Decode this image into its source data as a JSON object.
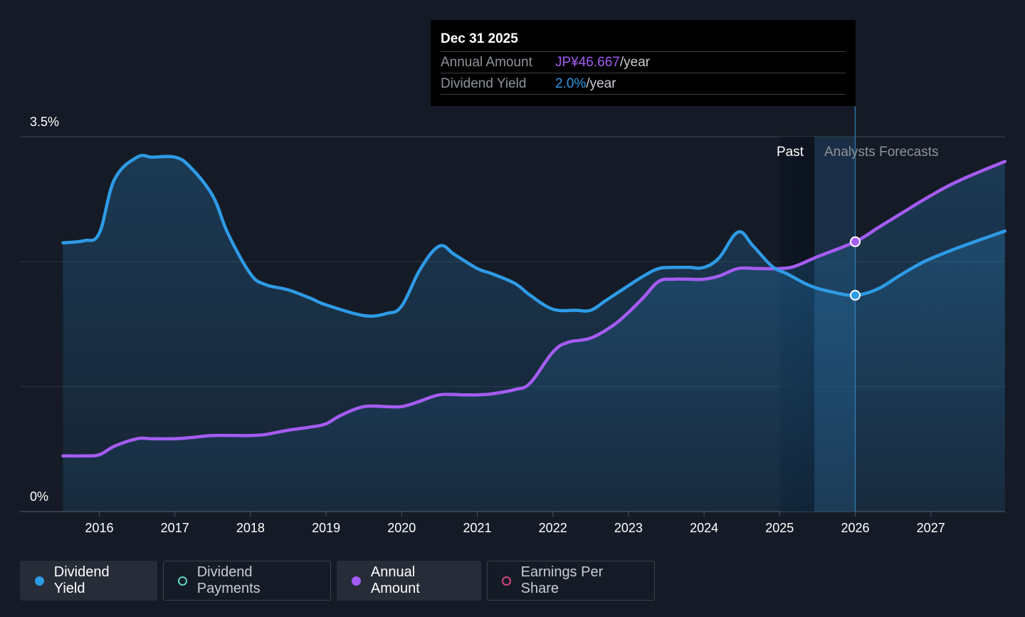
{
  "tooltip": {
    "date": "Dec 31 2025",
    "rows": [
      {
        "label": "Annual Amount",
        "value": "JP¥46.667",
        "unit": "/year"
      },
      {
        "label": "Dividend Yield",
        "value": "2.0%",
        "unit": "/year"
      }
    ]
  },
  "legend": {
    "items": [
      {
        "label": "Dividend Yield",
        "color": "#2e9be6",
        "style": "filled",
        "active": true
      },
      {
        "label": "Dividend Payments",
        "color": "#5fd3c0",
        "style": "ring",
        "active": false
      },
      {
        "label": "Annual Amount",
        "color": "#a55cf2",
        "style": "filled",
        "active": true
      },
      {
        "label": "Earnings Per Share",
        "color": "#d1437e",
        "style": "ring",
        "active": false
      }
    ]
  },
  "chart_data": {
    "type": "line",
    "y_tick_labels": [
      "3.5%",
      "0%"
    ],
    "ylim": [
      0,
      3.5
    ],
    "xlim": [
      2015.0,
      2027.98
    ],
    "x_tick_labels": [
      "2016",
      "2017",
      "2018",
      "2019",
      "2020",
      "2021",
      "2022",
      "2023",
      "2024",
      "2025",
      "2026",
      "2027"
    ],
    "region_labels": {
      "past": "Past",
      "forecast": "Analysts Forecasts"
    },
    "past_end": 2025.0,
    "forecast_start": 2025.46,
    "highlight_x": 2026.0,
    "grid": true,
    "colors": {
      "yield": "#2e9be6",
      "amount": "#a55cf2"
    },
    "series": [
      {
        "name": "Dividend Yield",
        "x": [
          2015.52,
          2015.8,
          2016.0,
          2016.2,
          2016.5,
          2016.7,
          2017.0,
          2017.2,
          2017.5,
          2017.7,
          2018.0,
          2018.2,
          2018.5,
          2018.8,
          2019.0,
          2019.5,
          2019.8,
          2020.0,
          2020.25,
          2020.5,
          2020.7,
          2021.0,
          2021.2,
          2021.5,
          2021.7,
          2022.0,
          2022.3,
          2022.5,
          2022.7,
          2023.0,
          2023.2,
          2023.4,
          2023.6,
          2023.8,
          2024.0,
          2024.2,
          2024.45,
          2024.65,
          2024.9,
          2025.1,
          2025.4,
          2025.7,
          2026.0,
          2026.3,
          2026.6,
          2026.9,
          2027.2,
          2027.5,
          2027.98
        ],
        "y": [
          2.51,
          2.53,
          2.6,
          3.1,
          3.31,
          3.31,
          3.31,
          3.22,
          2.95,
          2.6,
          2.22,
          2.12,
          2.07,
          1.99,
          1.93,
          1.83,
          1.85,
          1.92,
          2.27,
          2.48,
          2.4,
          2.27,
          2.22,
          2.13,
          2.02,
          1.89,
          1.88,
          1.88,
          1.97,
          2.11,
          2.2,
          2.27,
          2.28,
          2.28,
          2.28,
          2.37,
          2.61,
          2.48,
          2.29,
          2.22,
          2.11,
          2.05,
          2.02,
          2.08,
          2.21,
          2.33,
          2.42,
          2.5,
          2.62
        ]
      },
      {
        "name": "Annual Amount",
        "x": [
          2015.52,
          2015.8,
          2016.0,
          2016.2,
          2016.5,
          2016.7,
          2017.0,
          2017.2,
          2017.5,
          2017.8,
          2018.0,
          2018.2,
          2018.5,
          2018.8,
          2019.0,
          2019.2,
          2019.5,
          2019.8,
          2020.0,
          2020.2,
          2020.5,
          2020.8,
          2021.0,
          2021.2,
          2021.5,
          2021.7,
          2022.0,
          2022.2,
          2022.5,
          2022.8,
          2023.0,
          2023.2,
          2023.4,
          2023.6,
          2023.8,
          2024.0,
          2024.2,
          2024.45,
          2024.7,
          2025.0,
          2025.2,
          2025.5,
          2026.0,
          2026.3,
          2026.6,
          2026.9,
          2027.2,
          2027.5,
          2027.98
        ],
        "y": [
          0.52,
          0.52,
          0.53,
          0.61,
          0.68,
          0.68,
          0.68,
          0.69,
          0.71,
          0.71,
          0.71,
          0.72,
          0.76,
          0.79,
          0.82,
          0.9,
          0.98,
          0.98,
          0.98,
          1.02,
          1.09,
          1.09,
          1.09,
          1.1,
          1.14,
          1.2,
          1.49,
          1.58,
          1.62,
          1.74,
          1.86,
          2.0,
          2.15,
          2.17,
          2.17,
          2.17,
          2.2,
          2.27,
          2.27,
          2.27,
          2.29,
          2.38,
          2.52,
          2.65,
          2.78,
          2.91,
          3.03,
          3.13,
          3.27
        ]
      }
    ]
  }
}
